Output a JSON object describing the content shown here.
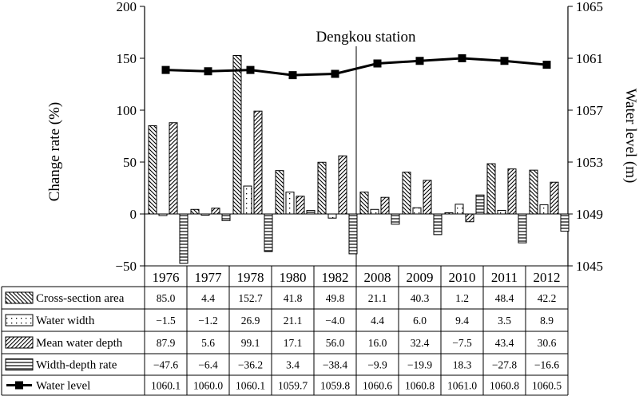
{
  "chart_data": {
    "type": "bar",
    "categories": [
      "1976",
      "1977",
      "1978",
      "1980",
      "1982",
      "2008",
      "2009",
      "2010",
      "2011",
      "2012"
    ],
    "annotation": "Dengkou station",
    "ylabel_left": "Change rate (%)",
    "ylabel_right": "Water level (m)",
    "ylim_left": [
      -50,
      200
    ],
    "yticks_left": [
      "200",
      "150",
      "100",
      "50",
      "0",
      "−50"
    ],
    "ylim_right": [
      1045,
      1065
    ],
    "yticks_right": [
      "1065",
      "1061",
      "1057",
      "1053",
      "1049",
      "1045"
    ],
    "series": [
      {
        "name": "Cross-section area",
        "pattern": "backslash",
        "values": [
          85.0,
          4.4,
          152.7,
          41.8,
          49.8,
          21.1,
          40.3,
          1.2,
          48.4,
          42.2
        ],
        "labels": [
          "85.0",
          "4.4",
          "152.7",
          "41.8",
          "49.8",
          "21.1",
          "40.3",
          "1.2",
          "48.4",
          "42.2"
        ]
      },
      {
        "name": "Water width",
        "pattern": "dots",
        "values": [
          -1.5,
          -1.2,
          26.9,
          21.1,
          -4.0,
          4.4,
          6.0,
          9.4,
          3.5,
          8.9
        ],
        "labels": [
          "−1.5",
          "−1.2",
          "26.9",
          "21.1",
          "−4.0",
          "4.4",
          "6.0",
          "9.4",
          "3.5",
          "8.9"
        ]
      },
      {
        "name": "Mean water depth",
        "pattern": "slash",
        "values": [
          87.9,
          5.6,
          99.1,
          17.1,
          56.0,
          16.0,
          32.4,
          -7.5,
          43.4,
          30.6
        ],
        "labels": [
          "87.9",
          "5.6",
          "99.1",
          "17.1",
          "56.0",
          "16.0",
          "32.4",
          "−7.5",
          "43.4",
          "30.6"
        ]
      },
      {
        "name": "Width-depth rate",
        "pattern": "horizontal",
        "values": [
          -47.6,
          -6.4,
          -36.2,
          3.4,
          -38.4,
          -9.9,
          -19.9,
          18.3,
          -27.8,
          -16.6
        ],
        "labels": [
          "−47.6",
          "−6.4",
          "−36.2",
          "3.4",
          "−38.4",
          "−9.9",
          "−19.9",
          "18.3",
          "−27.8",
          "−16.6"
        ]
      },
      {
        "name": "Water level",
        "type": "line",
        "marker": "square",
        "axis": "right",
        "values": [
          1060.1,
          1060.0,
          1060.1,
          1059.7,
          1059.8,
          1060.6,
          1060.8,
          1061.0,
          1060.8,
          1060.5
        ],
        "labels": [
          "1060.1",
          "1060.0",
          "1060.1",
          "1059.7",
          "1059.8",
          "1060.6",
          "1060.8",
          "1061.0",
          "1060.8",
          "1060.5"
        ]
      }
    ]
  }
}
